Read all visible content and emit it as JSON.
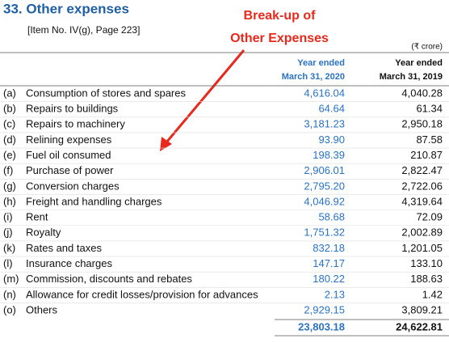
{
  "header": {
    "title": "33. Other expenses",
    "subtitle": "[Item No. IV(g), Page 223]"
  },
  "annotation": {
    "lines": [
      "Break-up of",
      "Other Expenses"
    ]
  },
  "table": {
    "unit": "(₹ crore)",
    "columns": [
      [
        "Year ended",
        "March 31, 2020"
      ],
      [
        "Year ended",
        "March 31, 2019"
      ]
    ],
    "rows": [
      [
        "(a)",
        "Consumption of stores and spares",
        "4,616.04",
        "4,040.28"
      ],
      [
        "(b)",
        "Repairs to buildings",
        "64.64",
        "61.34"
      ],
      [
        "(c)",
        "Repairs to machinery",
        "3,181.23",
        "2,950.18"
      ],
      [
        "(d)",
        "Relining expenses",
        "93.90",
        "87.58"
      ],
      [
        "(e)",
        "Fuel oil consumed",
        "198.39",
        "210.87"
      ],
      [
        "(f)",
        "Purchase of power",
        "2,906.01",
        "2,822.47"
      ],
      [
        "(g)",
        "Conversion charges",
        "2,795.20",
        "2,722.06"
      ],
      [
        "(h)",
        "Freight and handling charges",
        "4,046.92",
        "4,319.64"
      ],
      [
        "(i)",
        "Rent",
        "58.68",
        "72.09"
      ],
      [
        "(j)",
        "Royalty",
        "1,751.32",
        "2,002.89"
      ],
      [
        "(k)",
        "Rates and taxes",
        "832.18",
        "1,201.05"
      ],
      [
        "(l)",
        "Insurance charges",
        "147.17",
        "133.10"
      ],
      [
        "(m)",
        "Commission, discounts and rebates",
        "180.22",
        "188.63"
      ],
      [
        "(n)",
        "Allowance for credit losses/provision for advances",
        "2.13",
        "1.42"
      ],
      [
        "(o)",
        "Others",
        "2,929.15",
        "3,809.21"
      ]
    ],
    "total": [
      "23,803.18",
      "24,622.81"
    ]
  }
}
